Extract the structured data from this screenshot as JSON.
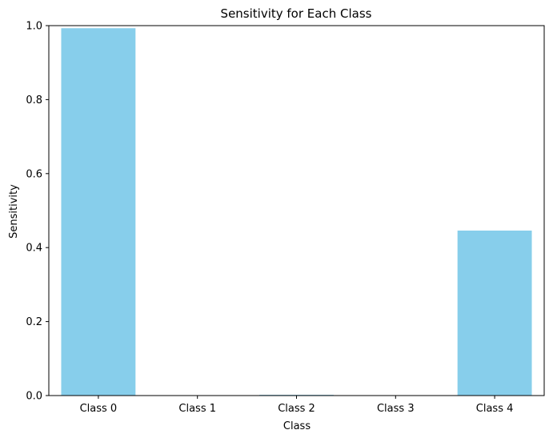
{
  "chart_data": {
    "type": "bar",
    "title": "Sensitivity for Each Class",
    "xlabel": "Class",
    "ylabel": "Sensitivity",
    "categories": [
      "Class 0",
      "Class 1",
      "Class 2",
      "Class 3",
      "Class 4"
    ],
    "values": [
      0.993,
      0.0,
      0.002,
      0.0,
      0.446
    ],
    "ylim": [
      0,
      1
    ],
    "yticks": [
      "0.0",
      "0.2",
      "0.4",
      "0.6",
      "0.8",
      "1.0"
    ],
    "ytick_values": [
      0,
      0.2,
      0.4,
      0.6,
      0.8,
      1.0
    ],
    "grid": false,
    "legend": "none",
    "bar_color": "#87CEEB",
    "axis_color": "#000000"
  }
}
